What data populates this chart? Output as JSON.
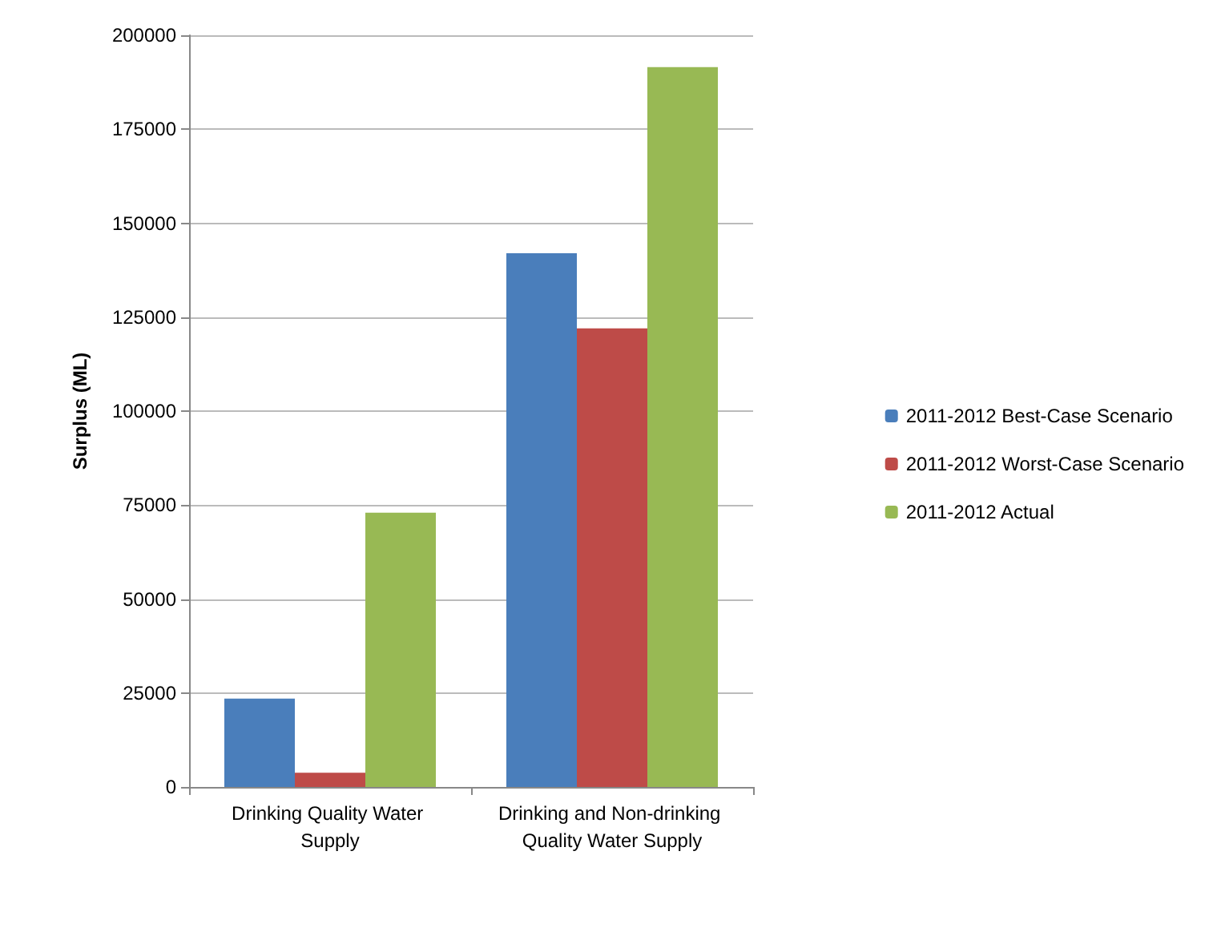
{
  "chart_data": {
    "type": "bar",
    "ylabel": "Surplus (ML)",
    "categories": [
      "Drinking Quality Water Supply",
      "Drinking and Non-drinking Quality Water Supply"
    ],
    "series": [
      {
        "name": "2011-2012 Best-Case Scenario",
        "color": "#4a7ebb",
        "values": [
          23500,
          142000
        ]
      },
      {
        "name": "2011-2012 Worst-Case Scenario",
        "color": "#be4b48",
        "values": [
          3800,
          122000
        ]
      },
      {
        "name": "2011-2012 Actual",
        "color": "#98b954",
        "values": [
          73000,
          191500
        ]
      }
    ],
    "ylim": [
      0,
      200000
    ],
    "yticks": [
      0,
      25000,
      50000,
      75000,
      100000,
      125000,
      150000,
      175000,
      200000
    ],
    "grid": "y",
    "legend": "right"
  }
}
